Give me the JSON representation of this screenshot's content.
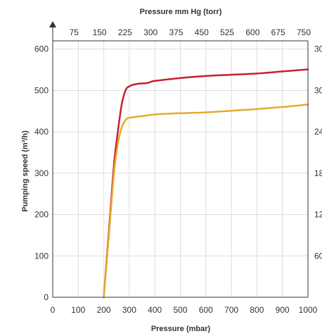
{
  "chart_data": {
    "type": "line",
    "title": "",
    "top_axis_label": "Pressure mm Hg (torr)",
    "top_ticks": [
      "75",
      "150",
      "225",
      "300",
      "375",
      "450",
      "525",
      "600",
      "675",
      "750"
    ],
    "xlabel": "Pressure (mbar)",
    "x_ticks": [
      "0",
      "100",
      "200",
      "300",
      "400",
      "500",
      "600",
      "700",
      "800",
      "900",
      "1000"
    ],
    "xlim": [
      0,
      1000
    ],
    "ylabel": "Pumping speed (m³/h)",
    "y_ticks": [
      "0",
      "100",
      "200",
      "300",
      "400",
      "500",
      "600"
    ],
    "ylim": [
      0,
      620
    ],
    "left_outer_label": "",
    "right_ticks": [
      "",
      "60",
      "12",
      "18",
      "24",
      "30",
      "30"
    ],
    "grid": true,
    "series": [
      {
        "color": "#c8202f",
        "points": [
          [
            200,
            0
          ],
          [
            220,
            160
          ],
          [
            240,
            320
          ],
          [
            255,
            400
          ],
          [
            270,
            465
          ],
          [
            285,
            500
          ],
          [
            300,
            510
          ],
          [
            330,
            516
          ],
          [
            370,
            518
          ],
          [
            400,
            523
          ],
          [
            500,
            530
          ],
          [
            600,
            535
          ],
          [
            700,
            538
          ],
          [
            800,
            541
          ],
          [
            900,
            546
          ],
          [
            1000,
            551
          ]
        ]
      },
      {
        "color": "#e3ac2c",
        "points": [
          [
            200,
            0
          ],
          [
            220,
            150
          ],
          [
            240,
            300
          ],
          [
            255,
            370
          ],
          [
            270,
            410
          ],
          [
            285,
            428
          ],
          [
            300,
            434
          ],
          [
            350,
            438
          ],
          [
            400,
            442
          ],
          [
            500,
            445
          ],
          [
            600,
            447
          ],
          [
            700,
            451
          ],
          [
            800,
            455
          ],
          [
            900,
            460
          ],
          [
            1000,
            466
          ]
        ]
      }
    ]
  }
}
